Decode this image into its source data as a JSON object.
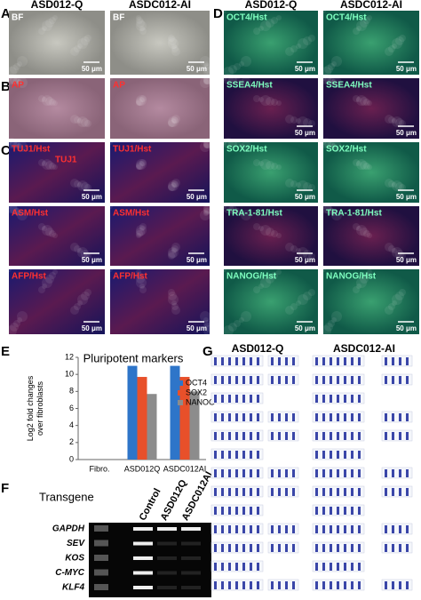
{
  "panel_labels": [
    "A",
    "B",
    "C",
    "D",
    "E",
    "F",
    "G"
  ],
  "scale_bar": "50 μm",
  "panel_a": {
    "headers": [
      "ASD012-Q",
      "ASDC012-AI"
    ],
    "labels": [
      "BF",
      "BF"
    ]
  },
  "panel_b": {
    "labels": [
      "AP",
      "AP"
    ]
  },
  "panel_c": {
    "labels": [
      "TUJ1/Hst",
      "TUJ1/Hst",
      "ASM/Hst",
      "ASM/Hst",
      "AFP/Hst",
      "AFP/Hst"
    ],
    "annotation": "TUJ1"
  },
  "panel_d": {
    "headers": [
      "ASD012-Q",
      "ASDC012-AI"
    ],
    "labels": [
      "OCT4/Hst",
      "OCT4/Hst",
      "SSEA4/Hst",
      "SSEA4/Hst",
      "SOX2/Hst",
      "SOX2/Hst",
      "TRA-1-81/Hst",
      "TRA-1-81/Hst",
      "NANOG/Hst",
      "NANOG/Hst"
    ]
  },
  "chart_data": {
    "type": "bar",
    "title": "Pluripotent  markers",
    "ylabel": "Log2 fold changes over fibroblasts",
    "categories": [
      "Fibro.",
      "ASD012Q",
      "ASDC012AI"
    ],
    "series": [
      {
        "name": "OCT4",
        "color": "#2e75c9",
        "values": [
          0,
          11,
          11
        ]
      },
      {
        "name": "SOX2",
        "color": "#e8502a",
        "values": [
          0,
          9.7,
          9.7
        ]
      },
      {
        "name": "NANOG",
        "color": "#8c8c8c",
        "values": [
          0,
          7.7,
          8
        ]
      }
    ],
    "ylim": [
      0,
      12
    ],
    "yticks": [
      0,
      2,
      4,
      6,
      8,
      10,
      12
    ],
    "grid": false,
    "legend": "right"
  },
  "panel_f": {
    "title": "Transgene",
    "lanes": [
      "Control",
      "ASD012Q",
      "ASDC012AI"
    ],
    "genes": [
      "GAPDH",
      "SEV",
      "KOS",
      "C-MYC",
      "KLF4"
    ]
  },
  "panel_g": {
    "headers": [
      "ASD012-Q",
      "ASDC012-AI"
    ]
  }
}
